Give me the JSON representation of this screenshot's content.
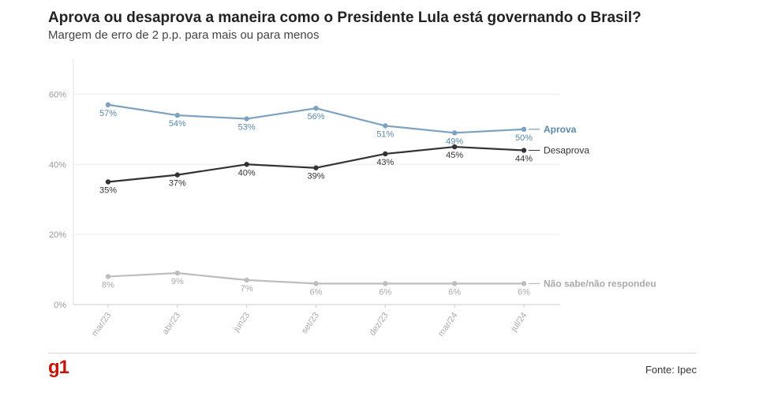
{
  "header": {
    "title": "Aprova ou desaprova a maneira como o Presidente Lula está governando o Brasil?",
    "subtitle": "Margem de erro de 2 p.p. para mais ou para menos"
  },
  "footer": {
    "logo": "g1",
    "source": "Fonte: Ipec"
  },
  "chart_data": {
    "type": "line",
    "categories": [
      "mar/23",
      "abr/23",
      "jun23",
      "set/23",
      "dez/23",
      "mar/24",
      "jul/24"
    ],
    "y_ticks": [
      0,
      20,
      40,
      60
    ],
    "y_tick_labels": [
      "0%",
      "20%",
      "40%",
      "60%"
    ],
    "ylim": [
      0,
      70
    ],
    "grid": true,
    "legend": "line-end labels",
    "series": [
      {
        "name": "Aprova",
        "values": [
          57,
          54,
          53,
          56,
          51,
          49,
          50
        ],
        "labels": [
          "57%",
          "54%",
          "53%",
          "56%",
          "51%",
          "49%",
          "50%"
        ],
        "color": "#7ba3c1",
        "label_color": "#5a88ad",
        "label_position": "below"
      },
      {
        "name": "Desaprova",
        "values": [
          35,
          37,
          40,
          39,
          43,
          45,
          44
        ],
        "labels": [
          "35%",
          "37%",
          "40%",
          "39%",
          "43%",
          "45%",
          "44%"
        ],
        "color": "#333333",
        "label_color": "#333333",
        "label_position": "below"
      },
      {
        "name": "Não sabe/não respondeu",
        "values": [
          8,
          9,
          7,
          6,
          6,
          6,
          6
        ],
        "labels": [
          "8%",
          "9%",
          "7%",
          "6%",
          "6%",
          "6%",
          "6%"
        ],
        "color": "#bdbdbd",
        "label_color": "#aaaaaa",
        "label_position": "below"
      }
    ]
  }
}
